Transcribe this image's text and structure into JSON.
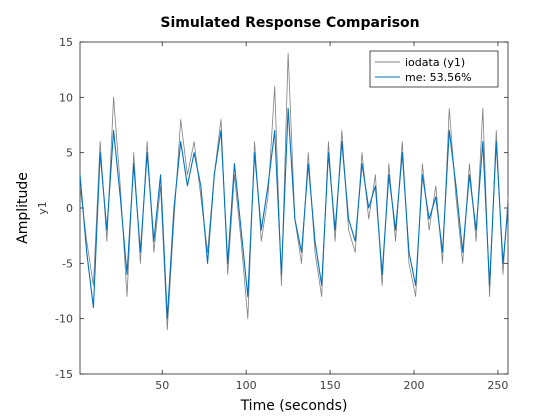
{
  "chart_data": {
    "type": "line",
    "title": "Simulated Response Comparison",
    "xlabel": "Time (seconds)",
    "ylabel": "Amplitude",
    "ylabel_channel": "y1",
    "xlim": [
      1,
      256
    ],
    "ylim": [
      -15,
      15
    ],
    "xticks": [
      50,
      100,
      150,
      200,
      250
    ],
    "yticks": [
      -15,
      -10,
      -5,
      0,
      5,
      10,
      15
    ],
    "grid": false,
    "legend_position": "top-right",
    "series": [
      {
        "name": "iodata (y1)",
        "color": "#808080",
        "x": [
          1,
          5,
          9,
          13,
          17,
          21,
          25,
          29,
          33,
          37,
          41,
          45,
          49,
          53,
          57,
          61,
          65,
          69,
          73,
          77,
          81,
          85,
          89,
          93,
          97,
          101,
          105,
          109,
          113,
          117,
          121,
          125,
          129,
          133,
          137,
          141,
          145,
          149,
          153,
          157,
          161,
          165,
          169,
          173,
          177,
          181,
          185,
          189,
          193,
          197,
          201,
          205,
          209,
          213,
          217,
          221,
          225,
          229,
          233,
          237,
          241,
          245,
          249,
          253,
          256
        ],
        "values": [
          2,
          -3,
          -7,
          6,
          -3,
          10,
          2,
          -8,
          5,
          -5,
          6,
          -4,
          2,
          -11,
          -1,
          8,
          3,
          6,
          1,
          -4,
          3,
          8,
          -6,
          3,
          -3,
          -10,
          6,
          -3,
          1,
          11,
          -7,
          14,
          -1,
          -5,
          5,
          -4,
          -8,
          6,
          -3,
          7,
          -2,
          -4,
          5,
          -1,
          3,
          -7,
          4,
          -3,
          6,
          -5,
          -8,
          4,
          -2,
          2,
          -5,
          9,
          1,
          -5,
          4,
          -3,
          9,
          -8,
          7,
          -6,
          1
        ]
      },
      {
        "name": "me: 53.56%",
        "color": "#0072BD",
        "x": [
          1,
          5,
          9,
          13,
          17,
          21,
          25,
          29,
          33,
          37,
          41,
          45,
          49,
          53,
          57,
          61,
          65,
          69,
          73,
          77,
          81,
          85,
          89,
          93,
          97,
          101,
          105,
          109,
          113,
          117,
          121,
          125,
          129,
          133,
          137,
          141,
          145,
          149,
          153,
          157,
          161,
          165,
          169,
          173,
          177,
          181,
          185,
          189,
          193,
          197,
          201,
          205,
          209,
          213,
          217,
          221,
          225,
          229,
          233,
          237,
          241,
          245,
          249,
          253,
          256
        ],
        "values": [
          3,
          -4,
          -9,
          5,
          -2,
          7,
          1,
          -6,
          4,
          -4,
          5,
          -3,
          3,
          -10,
          0,
          6,
          2,
          5,
          2,
          -5,
          3,
          7,
          -5,
          4,
          -2,
          -8,
          5,
          -2,
          2,
          7,
          -6,
          9,
          -1,
          -4,
          4,
          -3,
          -7,
          5,
          -2,
          6,
          -1,
          -3,
          4,
          0,
          2,
          -6,
          3,
          -2,
          5,
          -4,
          -7,
          3,
          -1,
          1,
          -4,
          7,
          2,
          -4,
          3,
          -2,
          6,
          -7,
          6,
          -5,
          0
        ]
      }
    ]
  }
}
